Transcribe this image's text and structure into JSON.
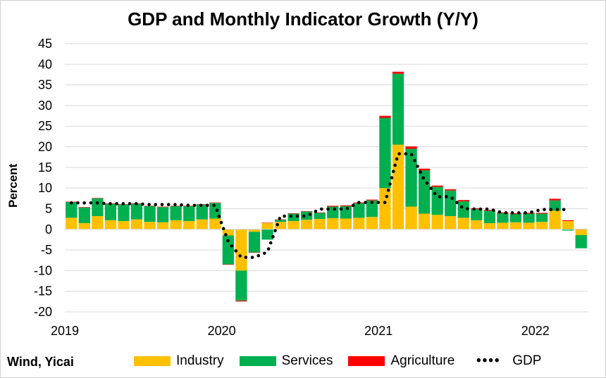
{
  "source": "Wind, Yicai",
  "chart_data": {
    "type": "bar",
    "stacked": true,
    "title": "GDP and Monthly Indicator Growth (Y/Y)",
    "xlabel": "",
    "ylabel": "Percent",
    "ylim": [
      -20,
      45
    ],
    "yticks": [
      "45",
      "40",
      "35",
      "30",
      "25",
      "20",
      "15",
      "10",
      "5",
      "0",
      "-5",
      "-10",
      "-15",
      "-20"
    ],
    "year_labels": [
      "2019",
      "2020",
      "2021",
      "2022"
    ],
    "grid": true,
    "legend_position": "bottom",
    "colors": {
      "industry": "#ffc000",
      "services": "#00b050",
      "agriculture": "#ff0000",
      "gdp": "#000000"
    },
    "categories": [
      "2019-01",
      "2019-02",
      "2019-03",
      "2019-04",
      "2019-05",
      "2019-06",
      "2019-07",
      "2019-08",
      "2019-09",
      "2019-10",
      "2019-11",
      "2019-12",
      "2020-01",
      "2020-02",
      "2020-03",
      "2020-04",
      "2020-05",
      "2020-06",
      "2020-07",
      "2020-08",
      "2020-09",
      "2020-10",
      "2020-11",
      "2020-12",
      "2021-01",
      "2021-02",
      "2021-03",
      "2021-04",
      "2021-05",
      "2021-06",
      "2021-07",
      "2021-08",
      "2021-09",
      "2021-10",
      "2021-11",
      "2021-12",
      "2022-01",
      "2022-02",
      "2022-03",
      "2022-04"
    ],
    "series": [
      {
        "name": "Industry",
        "values": [
          2.8,
          1.5,
          3.2,
          2.2,
          2.0,
          2.4,
          1.8,
          1.7,
          2.2,
          2.0,
          2.4,
          2.6,
          -1.5,
          -10.0,
          -0.6,
          1.5,
          1.8,
          2.0,
          2.3,
          2.5,
          2.7,
          2.6,
          2.8,
          3.0,
          10.0,
          20.5,
          5.5,
          3.8,
          3.5,
          3.2,
          2.8,
          2.2,
          1.5,
          1.6,
          1.7,
          1.6,
          1.8,
          4.5,
          2.0,
          -1.4
        ]
      },
      {
        "name": "Services",
        "values": [
          3.8,
          3.8,
          4.3,
          4.0,
          4.0,
          3.8,
          3.8,
          3.7,
          3.4,
          3.6,
          3.6,
          3.8,
          -7.0,
          -7.3,
          -5.0,
          -2.5,
          0.5,
          1.8,
          2.0,
          1.5,
          2.8,
          3.0,
          3.5,
          4.0,
          17.0,
          17.2,
          14.0,
          10.5,
          6.8,
          6.2,
          4.0,
          2.7,
          3.0,
          2.3,
          2.0,
          2.2,
          2.0,
          2.5,
          -0.3,
          -3.2
        ]
      },
      {
        "name": "Agriculture",
        "values": [
          0.1,
          0.1,
          0.1,
          0.1,
          0.1,
          0.1,
          0.1,
          0.1,
          0.1,
          0.1,
          0.1,
          0.1,
          -0.1,
          -0.2,
          -0.1,
          0.1,
          0.1,
          0.1,
          0.1,
          0.1,
          0.2,
          0.2,
          0.2,
          0.2,
          0.5,
          0.5,
          0.6,
          0.4,
          0.3,
          0.3,
          0.3,
          0.2,
          0.2,
          0.2,
          0.2,
          0.2,
          0.2,
          0.4,
          0.2,
          0.1
        ]
      },
      {
        "name": "GDP",
        "type": "dotted-line",
        "values": [
          6.4,
          6.4,
          6.4,
          6.2,
          6.2,
          6.2,
          6.0,
          6.0,
          6.0,
          5.8,
          5.8,
          5.8,
          -3.0,
          -6.8,
          -6.8,
          -5.5,
          3.2,
          3.2,
          3.2,
          4.9,
          4.9,
          4.9,
          6.5,
          6.5,
          6.5,
          18.3,
          18.3,
          12.0,
          7.9,
          7.9,
          5.0,
          4.9,
          4.9,
          4.0,
          4.0,
          4.0,
          4.8,
          4.8,
          4.8,
          null
        ]
      }
    ]
  },
  "legend": [
    {
      "key": "industry",
      "label": "Industry"
    },
    {
      "key": "services",
      "label": "Services"
    },
    {
      "key": "agriculture",
      "label": "Agriculture"
    },
    {
      "key": "gdp",
      "label": "GDP"
    }
  ]
}
